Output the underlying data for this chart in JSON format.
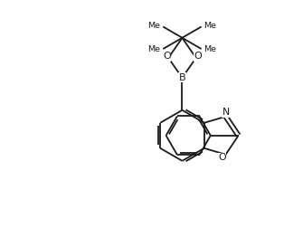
{
  "bg_color": "#ffffff",
  "line_color": "#1a1a1a",
  "lw": 1.3,
  "fig_width": 3.14,
  "fig_height": 2.62,
  "dpi": 100,
  "xlim": [
    0,
    9
  ],
  "ylim": [
    0,
    7.5
  ]
}
